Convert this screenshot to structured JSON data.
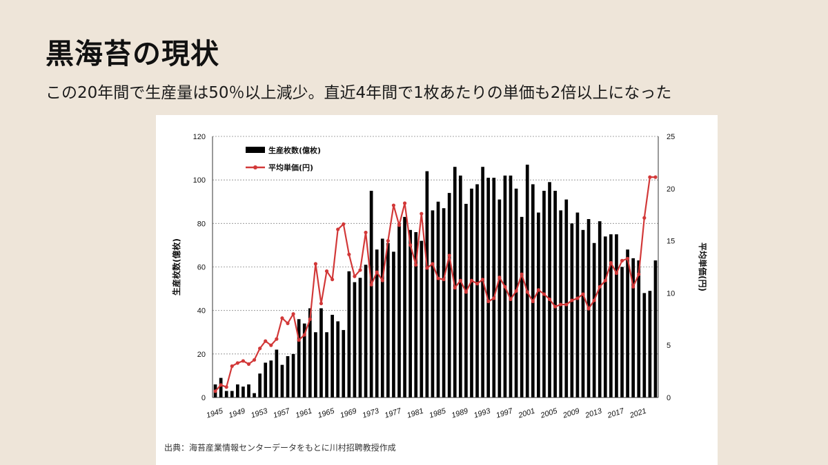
{
  "page": {
    "title": "黒海苔の現状",
    "subtitle": "この20年間で生産量は50％以上減少。直近4年間で1枚あたりの単価も2倍以上になった",
    "source": "出典：海苔産業情報センターデータをもとに川村招聘教授作成"
  },
  "chart_data": {
    "type": "bar+line",
    "title": "",
    "xlabel": "",
    "ylabel_left": "生産枚数(億枚)",
    "ylabel_right": "平均単価(円)",
    "ylim_left": [
      0,
      120
    ],
    "yticks_left": [
      0,
      20,
      40,
      60,
      80,
      100,
      120
    ],
    "ylim_right": [
      0,
      25
    ],
    "yticks_right": [
      0,
      5,
      10,
      15,
      20,
      25
    ],
    "grid": true,
    "legend_position": "top-left",
    "x": [
      1945,
      1946,
      1947,
      1948,
      1949,
      1950,
      1951,
      1952,
      1953,
      1954,
      1955,
      1956,
      1957,
      1958,
      1959,
      1960,
      1961,
      1962,
      1963,
      1964,
      1965,
      1966,
      1967,
      1968,
      1969,
      1970,
      1971,
      1972,
      1973,
      1974,
      1975,
      1976,
      1977,
      1978,
      1979,
      1980,
      1981,
      1982,
      1983,
      1984,
      1985,
      1986,
      1987,
      1988,
      1989,
      1990,
      1991,
      1992,
      1993,
      1994,
      1995,
      1996,
      1997,
      1998,
      1999,
      2000,
      2001,
      2002,
      2003,
      2004,
      2005,
      2006,
      2007,
      2008,
      2009,
      2010,
      2011,
      2012,
      2013,
      2014,
      2015,
      2016,
      2017,
      2018,
      2019,
      2020,
      2021,
      2022,
      2023,
      2024
    ],
    "x_tick_labels": [
      "1945",
      "1949",
      "1953",
      "1957",
      "1961",
      "1965",
      "1969",
      "1973",
      "1977",
      "1981",
      "1985",
      "1989",
      "1993",
      "1997",
      "2001",
      "2005",
      "2009",
      "2013",
      "2017",
      "2021"
    ],
    "series": [
      {
        "name": "生産枚数(億枚)",
        "type": "bar",
        "axis": "left",
        "color": "#000000",
        "values": [
          6,
          9,
          3,
          3,
          6,
          5,
          6,
          2,
          11,
          16,
          17,
          22,
          15,
          19,
          20,
          36,
          34,
          41,
          30,
          41,
          30,
          38,
          35,
          31,
          58,
          53,
          55,
          61,
          95,
          68,
          73,
          71,
          67,
          80,
          83,
          77,
          76,
          72,
          104,
          86,
          90,
          87,
          94,
          106,
          102,
          89,
          96,
          98,
          106,
          101,
          101,
          91,
          102,
          102,
          96,
          83,
          107,
          98,
          85,
          95,
          99,
          95,
          86,
          91,
          80,
          85,
          77,
          82,
          71,
          81,
          74,
          75,
          75,
          60,
          68,
          64,
          63,
          48,
          49,
          63
        ]
      },
      {
        "name": "平均単価(円)",
        "type": "line",
        "axis": "right",
        "color": "#d23838",
        "values": [
          0.6,
          1.2,
          1.0,
          3.0,
          3.3,
          3.5,
          3.2,
          3.6,
          4.7,
          5.4,
          5.0,
          5.6,
          7.6,
          7.1,
          8.0,
          5.5,
          6.0,
          7.5,
          12.8,
          9.0,
          12.1,
          11.3,
          16.1,
          16.6,
          13.7,
          11.6,
          12.2,
          15.8,
          10.8,
          12.0,
          11.2,
          15.0,
          18.4,
          16.5,
          18.6,
          14.6,
          12.7,
          17.6,
          12.4,
          12.8,
          11.4,
          11.3,
          13.6,
          10.5,
          11.2,
          10.1,
          11.2,
          10.9,
          11.3,
          9.2,
          9.5,
          11.5,
          10.6,
          9.4,
          10.2,
          11.8,
          10.1,
          9.2,
          10.3,
          9.9,
          9.4,
          8.7,
          8.9,
          8.9,
          9.3,
          9.5,
          9.9,
          8.5,
          9.3,
          10.6,
          11.2,
          12.9,
          11.9,
          13.1,
          13.3,
          10.6,
          11.8,
          17.2,
          21.1,
          21.1
        ]
      }
    ]
  }
}
